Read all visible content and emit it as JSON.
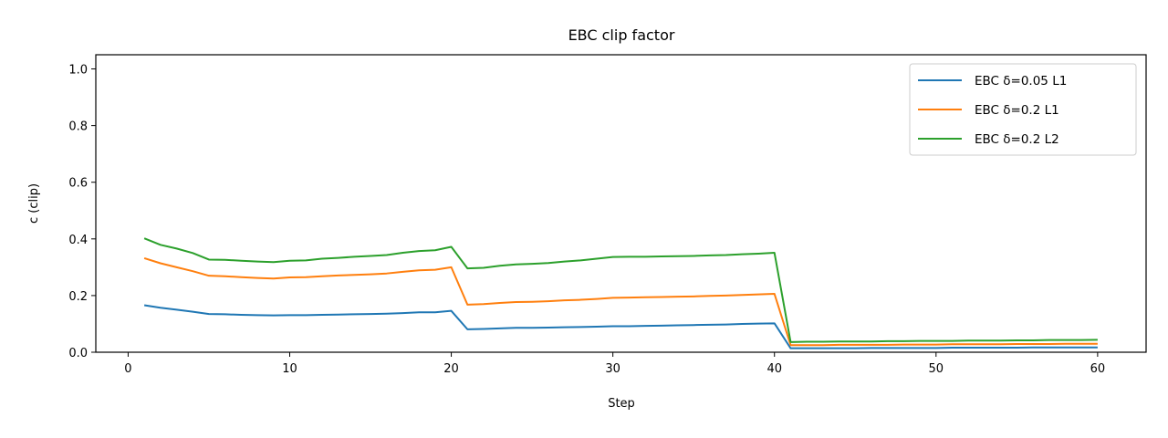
{
  "chart_data": {
    "type": "line",
    "title": "EBC clip factor",
    "xlabel": "Step",
    "ylabel": "c (clip)",
    "xlim": [
      -2,
      63
    ],
    "ylim": [
      0,
      1.05
    ],
    "xticks": [
      0,
      10,
      20,
      30,
      40,
      50,
      60
    ],
    "yticks": [
      0.0,
      0.2,
      0.4,
      0.6,
      0.8,
      1.0
    ],
    "xtick_labels": [
      "0",
      "10",
      "20",
      "30",
      "40",
      "50",
      "60"
    ],
    "ytick_labels": [
      "0.0",
      "0.2",
      "0.4",
      "0.6",
      "0.8",
      "1.0"
    ],
    "grid": false,
    "legend_position": "top-right",
    "series": [
      {
        "name": "EBC δ=0.05 L1",
        "color": "#1f77b4",
        "x": [
          1,
          2,
          3,
          4,
          5,
          6,
          7,
          8,
          9,
          10,
          11,
          12,
          13,
          14,
          15,
          16,
          17,
          18,
          19,
          20,
          21,
          22,
          23,
          24,
          25,
          26,
          27,
          28,
          29,
          30,
          31,
          32,
          33,
          34,
          35,
          36,
          37,
          38,
          39,
          40,
          41,
          42,
          43,
          44,
          45,
          46,
          47,
          48,
          49,
          50,
          51,
          52,
          53,
          54,
          55,
          56,
          57,
          58,
          59,
          60
        ],
        "y": [
          0.166,
          0.157,
          0.15,
          0.143,
          0.135,
          0.134,
          0.132,
          0.131,
          0.13,
          0.131,
          0.131,
          0.132,
          0.133,
          0.134,
          0.135,
          0.136,
          0.138,
          0.141,
          0.141,
          0.146,
          0.081,
          0.082,
          0.084,
          0.086,
          0.086,
          0.087,
          0.088,
          0.089,
          0.09,
          0.092,
          0.092,
          0.093,
          0.094,
          0.095,
          0.096,
          0.097,
          0.098,
          0.1,
          0.101,
          0.102,
          0.014,
          0.014,
          0.014,
          0.014,
          0.014,
          0.015,
          0.015,
          0.015,
          0.015,
          0.015,
          0.016,
          0.016,
          0.016,
          0.016,
          0.016,
          0.017,
          0.017,
          0.017,
          0.017,
          0.017
        ]
      },
      {
        "name": "EBC δ=0.2 L1",
        "color": "#ff7f0e",
        "x": [
          1,
          2,
          3,
          4,
          5,
          6,
          7,
          8,
          9,
          10,
          11,
          12,
          13,
          14,
          15,
          16,
          17,
          18,
          19,
          20,
          21,
          22,
          23,
          24,
          25,
          26,
          27,
          28,
          29,
          30,
          31,
          32,
          33,
          34,
          35,
          36,
          37,
          38,
          39,
          40,
          41,
          42,
          43,
          44,
          45,
          46,
          47,
          48,
          49,
          50,
          51,
          52,
          53,
          54,
          55,
          56,
          57,
          58,
          59,
          60
        ],
        "y": [
          0.332,
          0.314,
          0.3,
          0.286,
          0.27,
          0.268,
          0.265,
          0.262,
          0.26,
          0.264,
          0.265,
          0.268,
          0.271,
          0.273,
          0.275,
          0.278,
          0.284,
          0.289,
          0.291,
          0.3,
          0.168,
          0.17,
          0.174,
          0.177,
          0.178,
          0.18,
          0.183,
          0.185,
          0.188,
          0.192,
          0.193,
          0.194,
          0.195,
          0.196,
          0.197,
          0.199,
          0.2,
          0.202,
          0.204,
          0.206,
          0.025,
          0.025,
          0.025,
          0.026,
          0.026,
          0.026,
          0.026,
          0.027,
          0.027,
          0.027,
          0.028,
          0.028,
          0.028,
          0.028,
          0.029,
          0.029,
          0.029,
          0.03,
          0.03,
          0.03
        ]
      },
      {
        "name": "EBC δ=0.2 L2",
        "color": "#2ca02c",
        "x": [
          1,
          2,
          3,
          4,
          5,
          6,
          7,
          8,
          9,
          10,
          11,
          12,
          13,
          14,
          15,
          16,
          17,
          18,
          19,
          20,
          21,
          22,
          23,
          24,
          25,
          26,
          27,
          28,
          29,
          30,
          31,
          32,
          33,
          34,
          35,
          36,
          37,
          38,
          39,
          40,
          41,
          42,
          43,
          44,
          45,
          46,
          47,
          48,
          49,
          50,
          51,
          52,
          53,
          54,
          55,
          56,
          57,
          58,
          59,
          60
        ],
        "y": [
          0.402,
          0.379,
          0.366,
          0.35,
          0.327,
          0.326,
          0.323,
          0.32,
          0.318,
          0.323,
          0.324,
          0.33,
          0.333,
          0.337,
          0.34,
          0.343,
          0.351,
          0.357,
          0.36,
          0.372,
          0.296,
          0.298,
          0.305,
          0.31,
          0.312,
          0.315,
          0.32,
          0.324,
          0.33,
          0.336,
          0.337,
          0.337,
          0.338,
          0.339,
          0.34,
          0.342,
          0.343,
          0.346,
          0.348,
          0.351,
          0.036,
          0.037,
          0.037,
          0.038,
          0.038,
          0.038,
          0.039,
          0.039,
          0.04,
          0.04,
          0.04,
          0.041,
          0.041,
          0.041,
          0.042,
          0.042,
          0.043,
          0.043,
          0.043,
          0.044
        ]
      }
    ]
  }
}
